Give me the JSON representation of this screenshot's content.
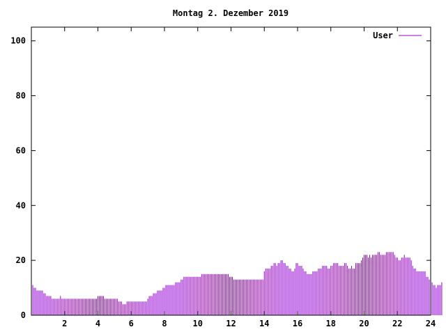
{
  "chart_data": {
    "type": "bar",
    "title": "Montag 2. Dezember 2019",
    "xlabel": "",
    "ylabel": "",
    "xlim": [
      0,
      24
    ],
    "ylim": [
      0,
      105
    ],
    "x_ticks": [
      2,
      4,
      6,
      8,
      10,
      12,
      14,
      16,
      18,
      20,
      22,
      24
    ],
    "y_ticks": [
      0,
      20,
      40,
      60,
      80,
      100
    ],
    "legend_position": "top-right",
    "grid": false,
    "series": [
      {
        "name": "User",
        "color": "#9400d3",
        "interval_minutes": 5,
        "values": [
          11,
          11,
          10,
          10,
          9,
          9,
          9,
          9,
          9,
          8,
          8,
          7,
          7,
          7,
          7,
          6,
          6,
          6,
          6,
          6,
          6,
          7,
          6,
          6,
          6,
          6,
          6,
          6,
          6,
          6,
          6,
          6,
          6,
          6,
          6,
          6,
          6,
          6,
          6,
          6,
          6,
          6,
          6,
          6,
          6,
          6,
          6,
          6,
          7,
          7,
          7,
          7,
          7,
          6,
          6,
          6,
          6,
          6,
          6,
          6,
          6,
          6,
          6,
          5,
          5,
          5,
          4,
          4,
          4,
          5,
          5,
          5,
          5,
          5,
          5,
          5,
          5,
          5,
          5,
          5,
          5,
          5,
          5,
          5,
          6,
          7,
          7,
          7,
          8,
          8,
          8,
          9,
          9,
          9,
          9,
          10,
          10,
          11,
          11,
          11,
          11,
          11,
          11,
          11,
          12,
          12,
          12,
          12,
          13,
          13,
          14,
          14,
          14,
          14,
          14,
          14,
          14,
          14,
          14,
          14,
          14,
          14,
          14,
          15,
          15,
          15,
          15,
          15,
          15,
          15,
          15,
          15,
          15,
          15,
          15,
          15,
          15,
          15,
          15,
          15,
          15,
          15,
          15,
          14,
          14,
          14,
          13,
          13,
          13,
          13,
          13,
          13,
          13,
          13,
          13,
          13,
          13,
          13,
          13,
          13,
          13,
          13,
          13,
          13,
          13,
          13,
          13,
          13,
          16,
          17,
          17,
          17,
          17,
          18,
          18,
          19,
          19,
          18,
          19,
          19,
          20,
          20,
          19,
          19,
          18,
          18,
          17,
          17,
          16,
          16,
          17,
          19,
          19,
          18,
          18,
          18,
          17,
          16,
          16,
          15,
          15,
          15,
          15,
          16,
          16,
          16,
          16,
          17,
          17,
          17,
          18,
          18,
          18,
          18,
          17,
          17,
          18,
          18,
          19,
          19,
          19,
          19,
          18,
          18,
          18,
          18,
          19,
          19,
          18,
          17,
          17,
          18,
          17,
          17,
          19,
          19,
          19,
          19,
          20,
          21,
          22,
          22,
          22,
          21,
          22,
          21,
          22,
          22,
          22,
          22,
          23,
          23,
          22,
          22,
          22,
          22,
          23,
          23,
          23,
          23,
          23,
          23,
          22,
          21,
          21,
          20,
          20,
          21,
          21,
          22,
          21,
          21,
          21,
          21,
          20,
          18,
          17,
          17,
          16,
          16,
          16,
          16,
          16,
          16,
          16,
          14,
          14,
          13,
          13,
          12,
          11,
          11,
          10,
          11,
          11,
          11,
          12
        ]
      }
    ]
  }
}
